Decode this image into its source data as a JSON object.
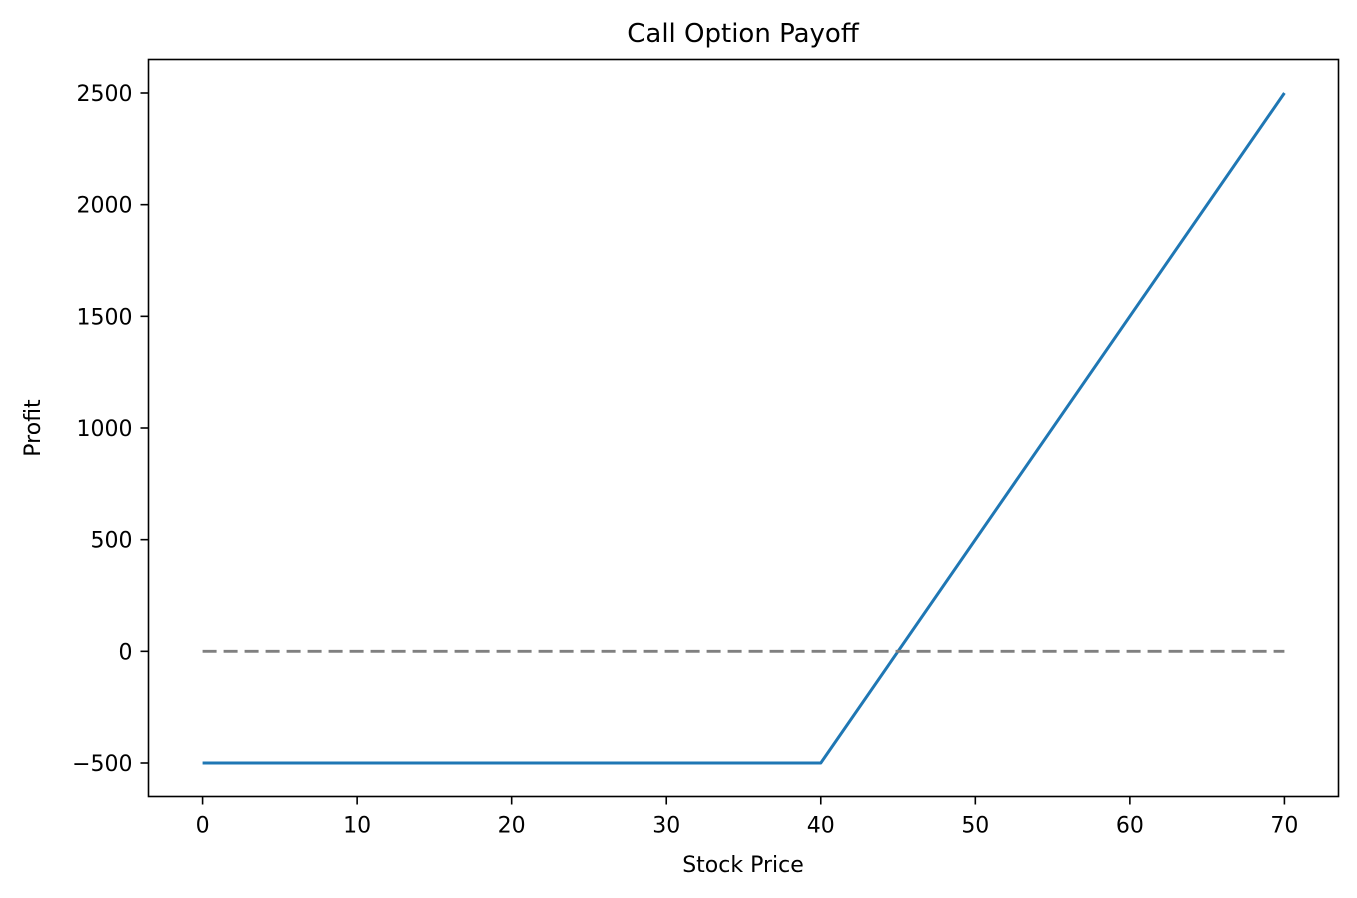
{
  "chart_data": {
    "type": "line",
    "title": "Call Option Payoff",
    "xlabel": "Stock Price",
    "ylabel": "Profit",
    "xlim": [
      -3.5,
      73.5
    ],
    "ylim": [
      -650,
      2650
    ],
    "xticks": [
      0,
      10,
      20,
      30,
      40,
      50,
      60,
      70
    ],
    "yticks": [
      -500,
      0,
      500,
      1000,
      1500,
      2000,
      2500
    ],
    "xtick_labels": [
      "0",
      "10",
      "20",
      "30",
      "40",
      "50",
      "60",
      "70"
    ],
    "ytick_labels": [
      "−500",
      "0",
      "500",
      "1000",
      "1500",
      "2000",
      "2500"
    ],
    "grid": false,
    "series": [
      {
        "style": "solid",
        "color": "#1f77b4",
        "x": [
          0,
          40,
          70
        ],
        "y": [
          -500,
          -500,
          2500
        ]
      },
      {
        "style": "dashed",
        "color": "#808080",
        "x": [
          0,
          70
        ],
        "y": [
          0,
          0
        ]
      }
    ]
  }
}
